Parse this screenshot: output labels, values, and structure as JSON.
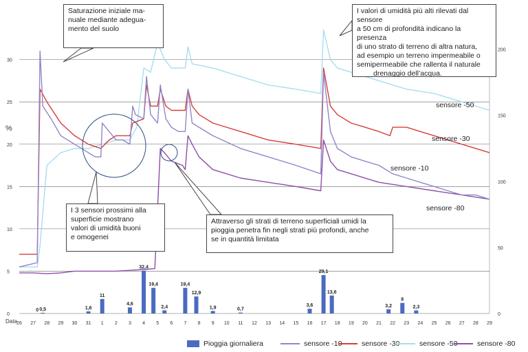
{
  "chart_data": {
    "type": "line",
    "ylabel": "%",
    "xlabel": "Data",
    "ylim": [
      0,
      32
    ],
    "y_ticks": [
      0,
      5,
      10,
      15,
      20,
      25,
      30
    ],
    "y2lim": [
      0,
      205
    ],
    "y2_ticks": [
      0,
      50,
      100,
      150,
      200
    ],
    "categories": [
      "26",
      "27",
      "28",
      "29",
      "30",
      "31",
      "1",
      "2",
      "3",
      "4",
      "5",
      "6",
      "7",
      "8",
      "9",
      "10",
      "11",
      "12",
      "13",
      "14",
      "15",
      "16",
      "17",
      "18",
      "19",
      "20",
      "21",
      "22",
      "23",
      "24",
      "25",
      "26",
      "27",
      "28",
      "29"
    ],
    "bar_series": {
      "name": "Pioggia giornaliera",
      "values": [
        {
          "x": 27.3,
          "label": "0",
          "value": 0
        },
        {
          "x": 27.7,
          "label": "0,5",
          "value": 0.5
        },
        {
          "x": 31.0,
          "label": "1,6",
          "value": 1.6
        },
        {
          "x": 32.0,
          "label": "11",
          "value": 11
        },
        {
          "x": 34.0,
          "label": "4,6",
          "value": 4.6
        },
        {
          "x": 35.0,
          "label": "32,4",
          "value": 32.4
        },
        {
          "x": 35.7,
          "label": "19,4",
          "value": 19.4
        },
        {
          "x": 36.5,
          "label": "2,4",
          "value": 2.4
        },
        {
          "x": 38.0,
          "label": "19,4",
          "value": 19.4
        },
        {
          "x": 38.8,
          "label": "12,9",
          "value": 12.9
        },
        {
          "x": 40.0,
          "label": "1,9",
          "value": 1.9
        },
        {
          "x": 42.0,
          "label": "0,7",
          "value": 0.7
        },
        {
          "x": 47.0,
          "label": "3,6",
          "value": 3.6
        },
        {
          "x": 48.0,
          "label": "29,1",
          "value": 29.1
        },
        {
          "x": 48.6,
          "label": "13,6",
          "value": 13.6
        },
        {
          "x": 52.7,
          "label": "3,2",
          "value": 3.2
        },
        {
          "x": 53.7,
          "label": "8",
          "value": 8
        },
        {
          "x": 54.7,
          "label": "2,3",
          "value": 2.3
        }
      ]
    },
    "series": [
      {
        "name": "sensore -10",
        "color": "#8f86c9",
        "points": [
          [
            26,
            5.5
          ],
          [
            27.3,
            6
          ],
          [
            27.5,
            31
          ],
          [
            27.7,
            24.5
          ],
          [
            28.3,
            23
          ],
          [
            29,
            21
          ],
          [
            30,
            20
          ],
          [
            31,
            19
          ],
          [
            31.5,
            18.5
          ],
          [
            31.9,
            18.5
          ],
          [
            32,
            22.5
          ],
          [
            32.5,
            21.5
          ],
          [
            33,
            20.5
          ],
          [
            33.5,
            20.5
          ],
          [
            34,
            20
          ],
          [
            34.2,
            24.5
          ],
          [
            34.4,
            23.5
          ],
          [
            35,
            23
          ],
          [
            35.2,
            28
          ],
          [
            35.5,
            23.5
          ],
          [
            36,
            22.5
          ],
          [
            36.2,
            27
          ],
          [
            36.6,
            23
          ],
          [
            37,
            22
          ],
          [
            37.5,
            21.5
          ],
          [
            38,
            21.5
          ],
          [
            38.2,
            26.5
          ],
          [
            38.5,
            22.5
          ],
          [
            39,
            22
          ],
          [
            40,
            21
          ],
          [
            42,
            19.5
          ],
          [
            44,
            18.5
          ],
          [
            46,
            17.5
          ],
          [
            47.8,
            16.5
          ],
          [
            48,
            28.5
          ],
          [
            48.5,
            21.5
          ],
          [
            49,
            19.5
          ],
          [
            50,
            18.5
          ],
          [
            51,
            18
          ],
          [
            52,
            17.5
          ],
          [
            53,
            16.5
          ],
          [
            54,
            16
          ],
          [
            55,
            15.5
          ],
          [
            56,
            15
          ],
          [
            57,
            14.5
          ],
          [
            58,
            14
          ],
          [
            59,
            14
          ],
          [
            60,
            13.5
          ]
        ]
      },
      {
        "name": "sensore -30",
        "color": "#d63c3c",
        "points": [
          [
            26,
            7
          ],
          [
            27.3,
            7
          ],
          [
            27.5,
            26.5
          ],
          [
            28,
            25
          ],
          [
            29,
            22.5
          ],
          [
            30,
            21
          ],
          [
            31,
            20
          ],
          [
            31.9,
            19.5
          ],
          [
            32.5,
            20.5
          ],
          [
            33,
            21
          ],
          [
            34,
            21
          ],
          [
            34.2,
            22.5
          ],
          [
            35,
            23
          ],
          [
            35.2,
            27
          ],
          [
            35.5,
            24.5
          ],
          [
            36,
            24.5
          ],
          [
            36.2,
            26.5
          ],
          [
            36.6,
            24.5
          ],
          [
            37,
            24
          ],
          [
            37.5,
            24
          ],
          [
            38,
            24
          ],
          [
            38.2,
            26.5
          ],
          [
            38.5,
            24.5
          ],
          [
            39,
            23.5
          ],
          [
            40,
            22.5
          ],
          [
            42,
            21.5
          ],
          [
            44,
            20.5
          ],
          [
            46,
            20
          ],
          [
            47.8,
            19.5
          ],
          [
            48,
            29
          ],
          [
            48.5,
            24.5
          ],
          [
            49,
            23.5
          ],
          [
            50,
            22.5
          ],
          [
            51,
            22
          ],
          [
            52,
            21.5
          ],
          [
            52.8,
            21
          ],
          [
            53,
            22
          ],
          [
            54,
            22
          ],
          [
            55,
            21.5
          ],
          [
            56,
            21
          ],
          [
            57,
            20.5
          ],
          [
            58,
            20
          ],
          [
            59,
            19.5
          ],
          [
            60,
            19
          ]
        ]
      },
      {
        "name": "sensore -50",
        "color": "#a9dcf0",
        "points": [
          [
            26,
            5.5
          ],
          [
            27.3,
            5.5
          ],
          [
            27.5,
            8
          ],
          [
            28,
            17.5
          ],
          [
            29,
            19
          ],
          [
            30,
            19.5
          ],
          [
            31,
            19.5
          ],
          [
            32,
            20
          ],
          [
            33,
            20.5
          ],
          [
            34,
            20.5
          ],
          [
            34.5,
            22
          ],
          [
            35,
            29
          ],
          [
            35.5,
            28.5
          ],
          [
            36,
            32
          ],
          [
            36.5,
            30
          ],
          [
            37,
            29
          ],
          [
            37.5,
            29
          ],
          [
            38,
            29
          ],
          [
            38.2,
            31.5
          ],
          [
            38.5,
            29.5
          ],
          [
            40,
            29
          ],
          [
            42,
            28
          ],
          [
            44,
            27
          ],
          [
            46,
            26.5
          ],
          [
            47.8,
            26
          ],
          [
            48,
            33.5
          ],
          [
            48.5,
            30
          ],
          [
            49,
            29
          ],
          [
            50,
            28.5
          ],
          [
            52,
            27.5
          ],
          [
            54,
            26.5
          ],
          [
            56,
            26
          ],
          [
            58,
            25
          ],
          [
            60,
            24
          ]
        ]
      },
      {
        "name": "sensore -80",
        "color": "#8a4fa6",
        "points": [
          [
            26,
            4.8
          ],
          [
            27,
            4.8
          ],
          [
            28,
            4.7
          ],
          [
            29,
            4.8
          ],
          [
            30,
            5
          ],
          [
            31,
            5
          ],
          [
            32,
            5
          ],
          [
            33,
            5
          ],
          [
            34,
            5.1
          ],
          [
            35,
            5.2
          ],
          [
            35.8,
            5.3
          ],
          [
            36.2,
            19.5
          ],
          [
            36.5,
            19
          ],
          [
            37,
            18
          ],
          [
            37.8,
            17.5
          ],
          [
            38,
            17
          ],
          [
            38.2,
            21
          ],
          [
            38.5,
            20
          ],
          [
            39,
            18.5
          ],
          [
            40,
            17
          ],
          [
            42,
            16
          ],
          [
            44,
            15.5
          ],
          [
            46,
            15
          ],
          [
            47.8,
            14.5
          ],
          [
            48,
            20.5
          ],
          [
            48.5,
            18
          ],
          [
            49,
            17
          ],
          [
            50,
            16.5
          ],
          [
            52,
            15.5
          ],
          [
            54,
            15
          ],
          [
            56,
            14.5
          ],
          [
            58,
            14
          ],
          [
            60,
            13.5
          ]
        ]
      }
    ],
    "labels_on_lines": [
      "sensore -50",
      "sensore -30",
      "sensore -10",
      "sensore -80"
    ],
    "annotations": [
      "Saturazione iniziale manuale mediante adeguamento del suolo",
      "I valori di umidità più alti rilevati dal sensore a 50 cm di profondità indicano la presenza di uno strato di terreno di altra natura, ad esempio un terreno impermeabile o semipermeabile che rallenta il naturale drenaggio dell'acqua.",
      "I 3 sensori prossimi alla superficie mostrano valori di umidità buoni e omogenei",
      "Attraverso gli strati di terreno superficiali umidi la pioggia penetra fin negli strati più profondi, anche se in quantità limitata"
    ],
    "grid": true,
    "legend": "bottom"
  },
  "callouts": {
    "c1": [
      "Saturazione iniziale ma-",
      "nuale mediante adegua-",
      "mento del suolo"
    ],
    "c2": [
      "I valori di umidità più alti rilevati dal sensore",
      "a 50 cm di profondità indicano la presenza",
      "di uno strato di terreno di altra natura,",
      "ad esempio un terreno impermeabile o",
      "semipermeabile che rallenta il naturale",
      "drenaggio dell’acqua."
    ],
    "c3": [
      "I 3 sensori prossimi alla",
      "superficie mostrano",
      "valori di umidità buoni",
      "e omogenei"
    ],
    "c4": [
      "Attraverso gli strati di terreno superficiali umidi la",
      "pioggia penetra fin negli strati più profondi, anche",
      "se in quantità limitata"
    ]
  },
  "legend": {
    "rain": "Pioggia giornaliera",
    "s10": "sensore -10",
    "s30": "sensore -30",
    "s50": "sensore -50",
    "s80": "sensore -80"
  },
  "colors": {
    "rain": "#4a6bbf",
    "s10": "#8f86c9",
    "s30": "#d63c3c",
    "s50": "#a9dcf0",
    "s80": "#8a4fa6",
    "grid": "#555555"
  }
}
